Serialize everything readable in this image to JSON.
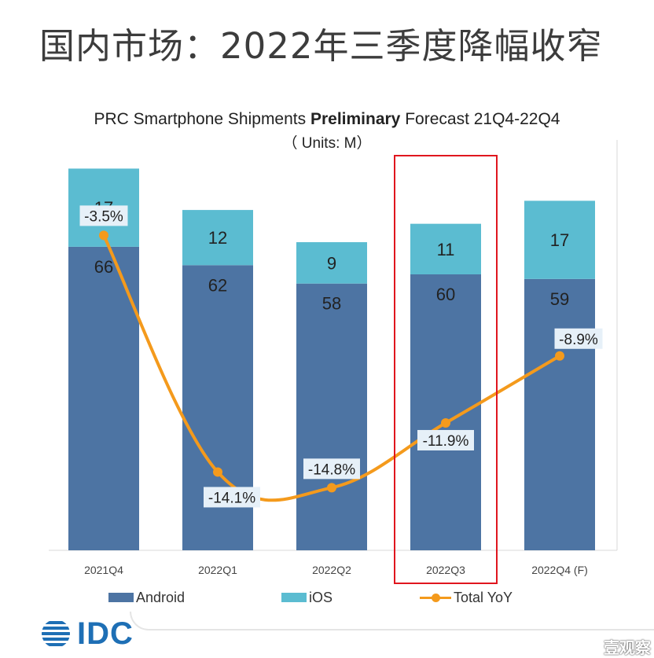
{
  "page_title": "国内市场：2022年三季度降幅收窄",
  "chart_title_prefix": "PRC Smartphone Shipments ",
  "chart_title_bold": "Preliminary",
  "chart_title_suffix": " Forecast 21Q4-22Q4",
  "chart_subtitle": "（ Units: M）",
  "legend": {
    "android": "Android",
    "ios": "iOS",
    "yoy": "Total YoY"
  },
  "logo_text": "IDC",
  "watermark": "壹观察",
  "colors": {
    "android": "#4d74a3",
    "ios": "#5bbcd1",
    "yoy": "#f49a1c",
    "highlight": "#e0161e",
    "label_box": "#e6f0f8"
  },
  "chart_data": {
    "type": "bar",
    "stacked": true,
    "categories": [
      "2021Q4",
      "2022Q1",
      "2022Q2",
      "2022Q3",
      "2022Q4 (F)"
    ],
    "series": [
      {
        "name": "Android",
        "values": [
          66,
          62,
          58,
          60,
          59
        ]
      },
      {
        "name": "iOS",
        "values": [
          17,
          12,
          9,
          11,
          17
        ]
      }
    ],
    "line_series": {
      "name": "Total YoY",
      "values": [
        -3.5,
        -14.1,
        -14.8,
        -11.9,
        -8.9
      ],
      "unit": "%"
    },
    "highlight_category": "2022Q3",
    "legend_position": "bottom"
  }
}
